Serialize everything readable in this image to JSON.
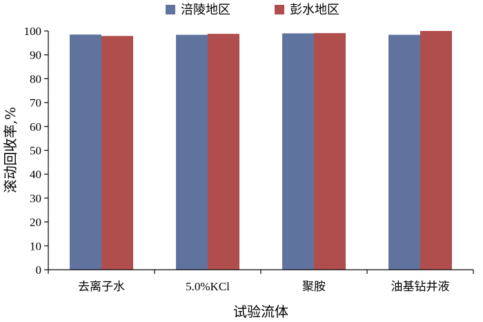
{
  "chart_data": {
    "type": "bar",
    "categories": [
      "去离子水",
      "5.0%KCl",
      "聚胺",
      "油基钻井液"
    ],
    "series": [
      {
        "name": "涪陵地区",
        "color": "#60739f",
        "values": [
          98.5,
          98.4,
          99.0,
          98.4
        ]
      },
      {
        "name": "彭水地区",
        "color": "#b04e4d",
        "values": [
          97.9,
          98.8,
          99.1,
          100.0
        ]
      }
    ],
    "xlabel": "试验流体",
    "ylabel": "滚动回收率,%",
    "ylim": [
      0,
      100
    ],
    "yticks": [
      0,
      10,
      20,
      30,
      40,
      50,
      60,
      70,
      80,
      90,
      100
    ],
    "grid": false,
    "legend_position": "top-center"
  }
}
